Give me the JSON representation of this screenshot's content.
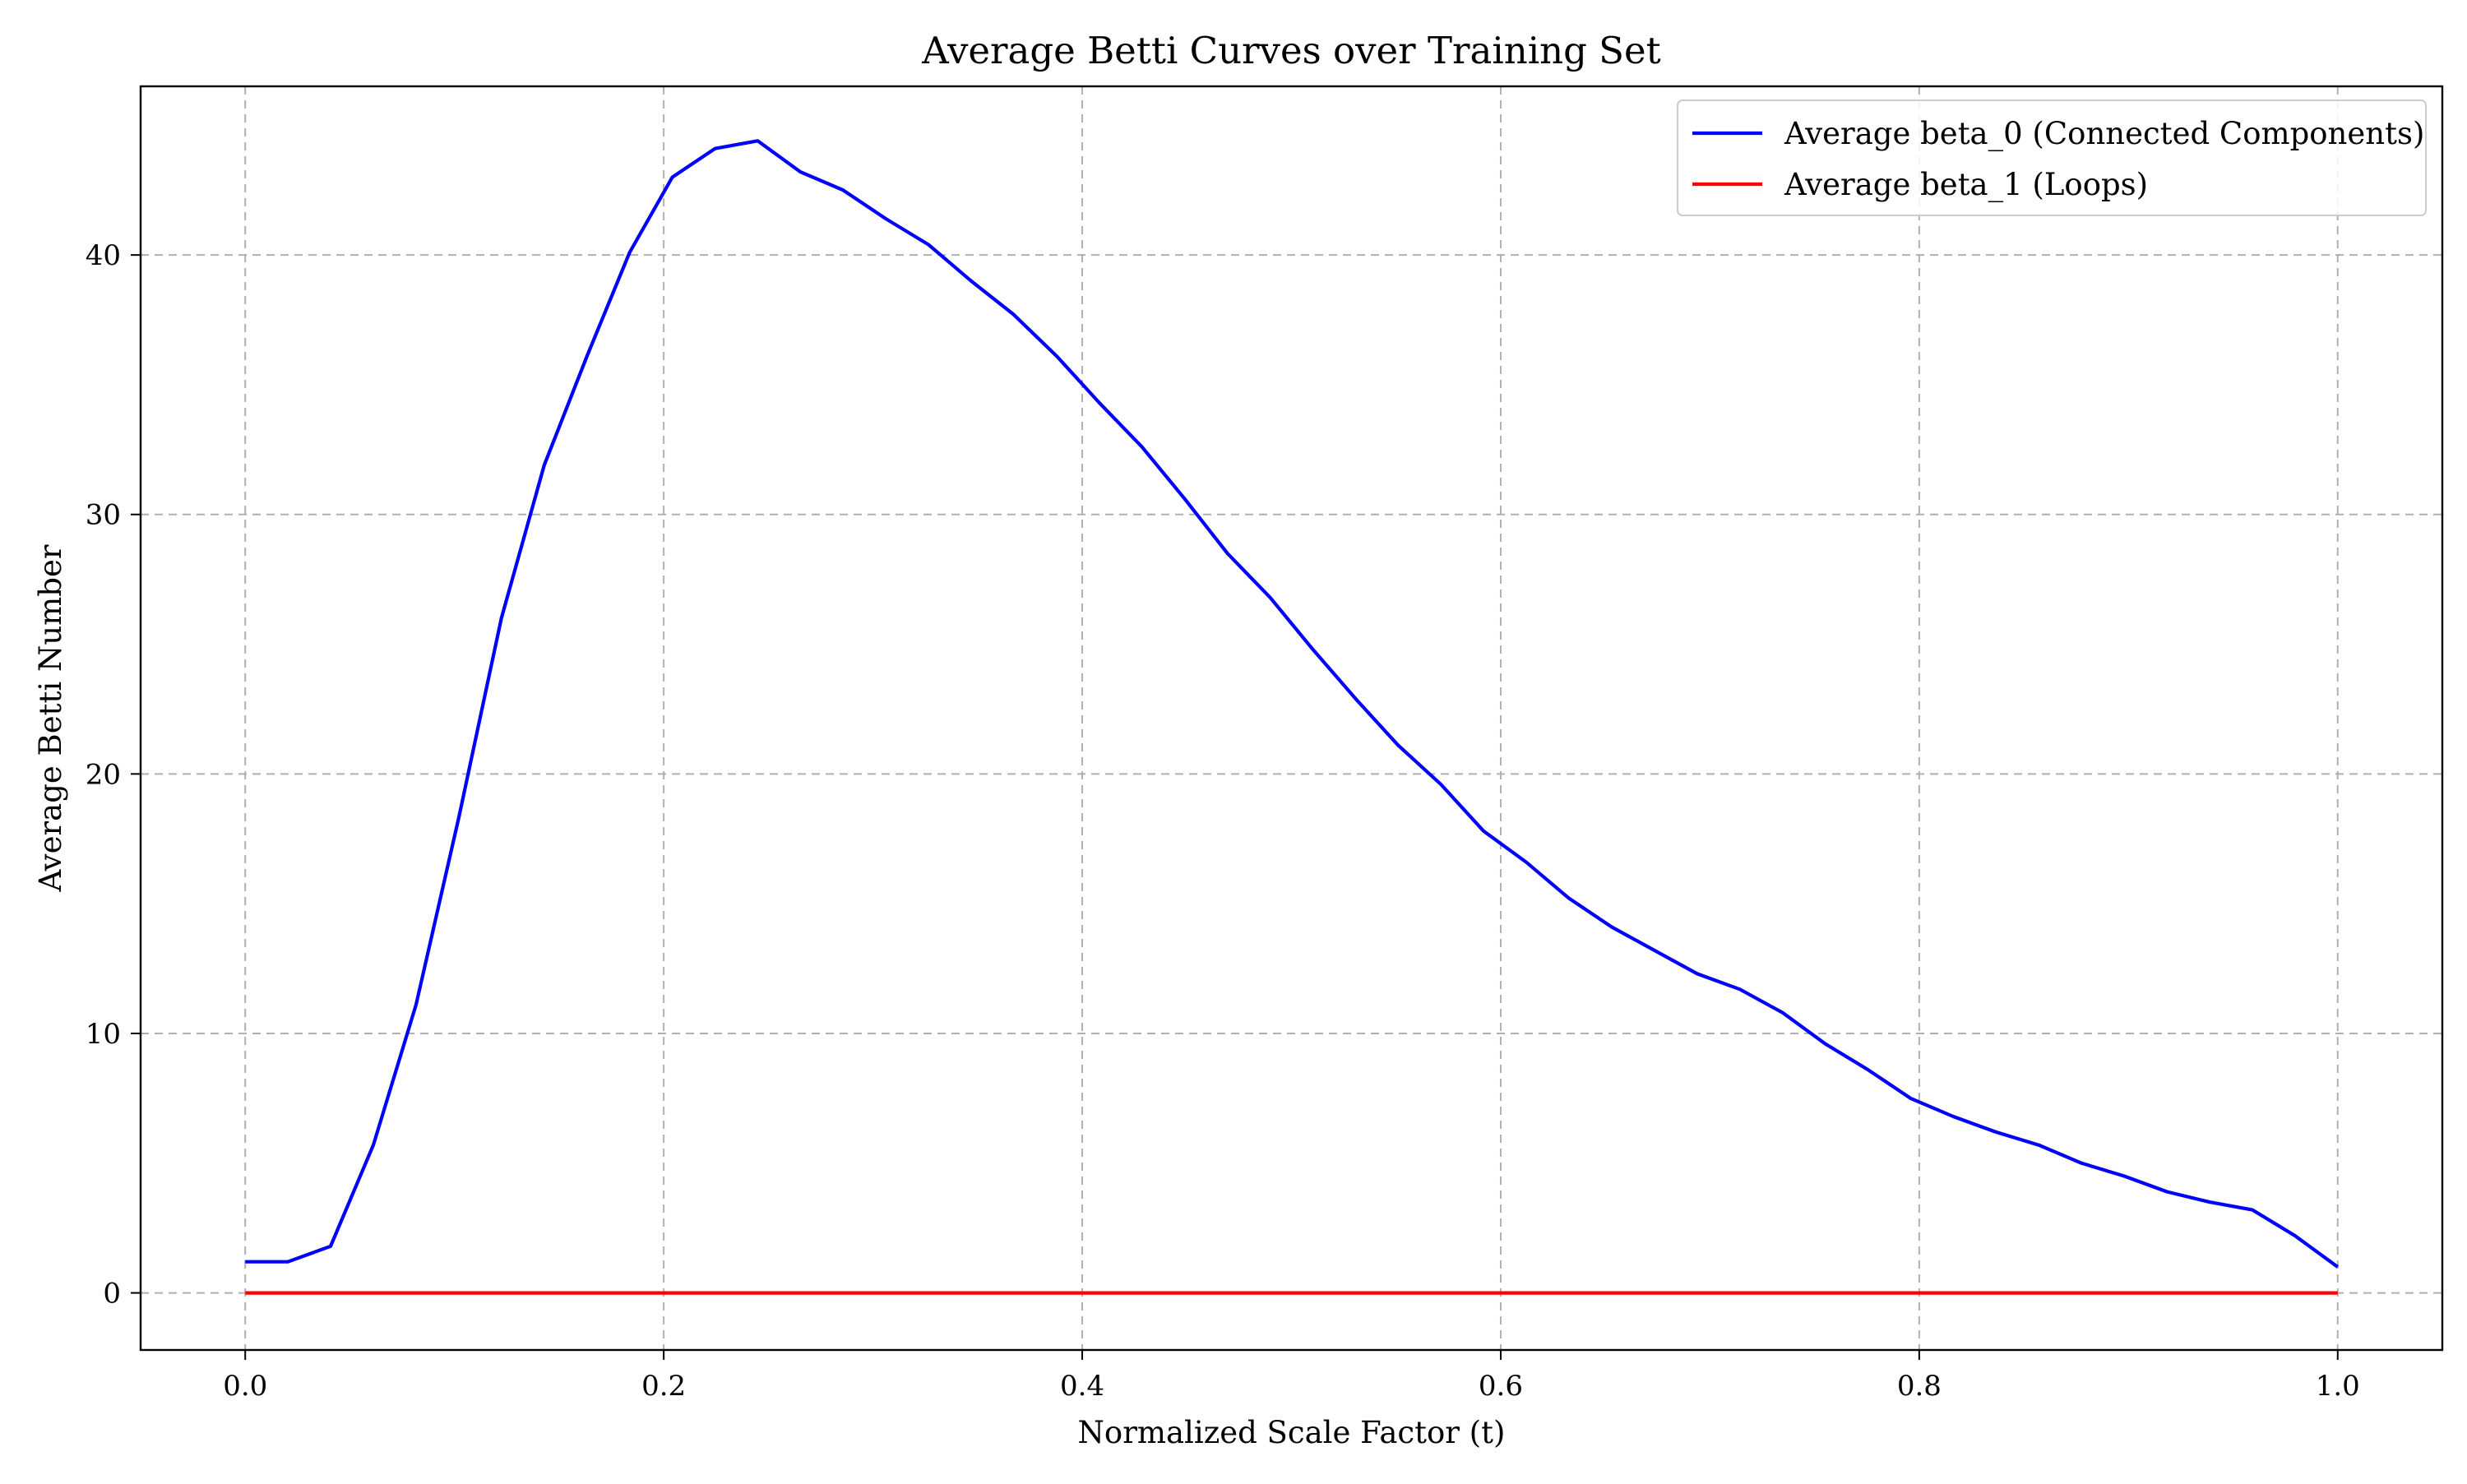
{
  "chart_data": {
    "type": "line",
    "title": "Average Betti Curves over Training Set",
    "xlabel": "Normalized Scale Factor (t)",
    "ylabel": "Average Betti Number",
    "xlim": [
      -0.05,
      1.05
    ],
    "ylim": [
      -2.2,
      46.5
    ],
    "x_ticks": [
      0.0,
      0.2,
      0.4,
      0.6,
      0.8,
      1.0
    ],
    "x_tick_labels": [
      "0.0",
      "0.2",
      "0.4",
      "0.6",
      "0.8",
      "1.0"
    ],
    "y_ticks": [
      0,
      10,
      20,
      30,
      40
    ],
    "y_tick_labels": [
      "0",
      "10",
      "20",
      "30",
      "40"
    ],
    "grid": true,
    "legend_position": "top-right",
    "x": [
      0.0,
      0.0204,
      0.0408,
      0.0612,
      0.0816,
      0.102,
      0.1224,
      0.1429,
      0.1633,
      0.1837,
      0.2041,
      0.2245,
      0.2449,
      0.2653,
      0.2857,
      0.3061,
      0.3265,
      0.3469,
      0.3673,
      0.3878,
      0.4082,
      0.4286,
      0.449,
      0.4694,
      0.4898,
      0.5102,
      0.5306,
      0.551,
      0.5714,
      0.5918,
      0.6122,
      0.6327,
      0.6531,
      0.6735,
      0.6939,
      0.7143,
      0.7347,
      0.7551,
      0.7755,
      0.7959,
      0.8163,
      0.8367,
      0.8571,
      0.8776,
      0.898,
      0.9184,
      0.9388,
      0.9592,
      0.9796,
      1.0
    ],
    "series": [
      {
        "name": "Average beta_0 (Connected Components)",
        "color": "#0000ff",
        "values": [
          1.2,
          1.2,
          1.8,
          5.7,
          11.1,
          18.3,
          26.0,
          31.9,
          36.1,
          40.1,
          43.0,
          44.1,
          44.4,
          43.2,
          42.5,
          41.4,
          40.4,
          39.0,
          37.7,
          36.1,
          34.3,
          32.6,
          30.6,
          28.5,
          26.8,
          24.8,
          22.9,
          21.1,
          19.6,
          17.8,
          16.6,
          15.2,
          14.1,
          13.2,
          12.3,
          11.7,
          10.8,
          9.6,
          8.6,
          7.5,
          6.8,
          6.2,
          5.7,
          5.0,
          4.5,
          3.9,
          3.5,
          3.2,
          2.2,
          1.0
        ]
      },
      {
        "name": "Average beta_1 (Loops)",
        "color": "#ff0000",
        "values": [
          0,
          0,
          0,
          0,
          0,
          0,
          0,
          0,
          0,
          0,
          0,
          0,
          0,
          0,
          0,
          0,
          0,
          0,
          0,
          0,
          0,
          0,
          0,
          0,
          0,
          0,
          0,
          0,
          0,
          0,
          0,
          0,
          0,
          0,
          0,
          0,
          0,
          0,
          0,
          0,
          0,
          0,
          0,
          0,
          0,
          0,
          0,
          0,
          0,
          0
        ]
      }
    ]
  }
}
